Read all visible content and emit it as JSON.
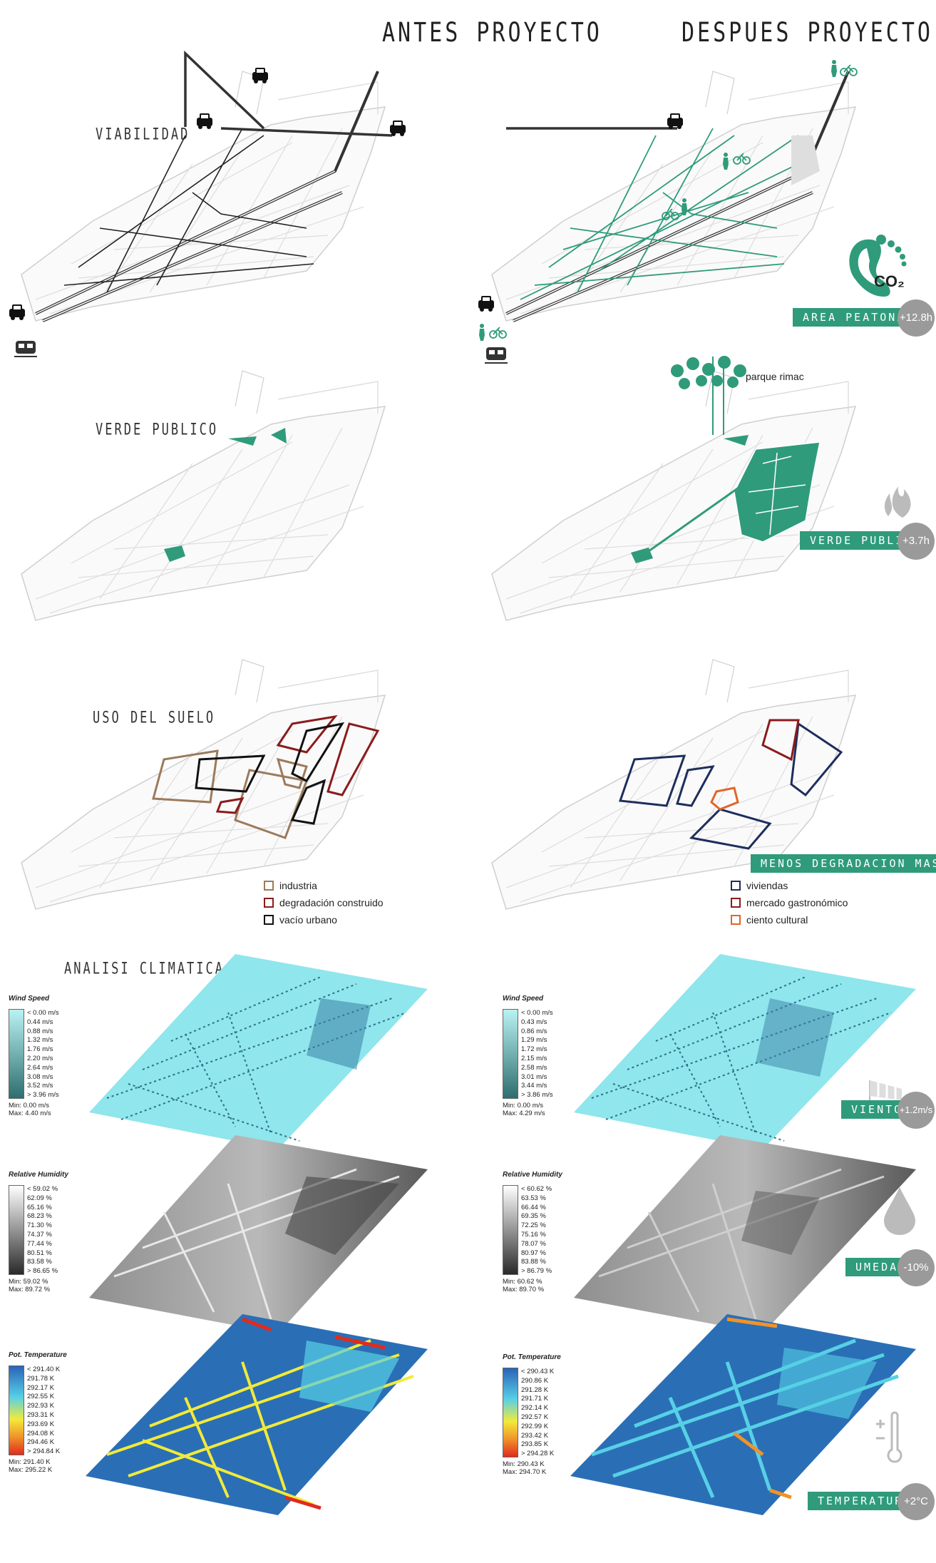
{
  "headers": {
    "before": "ANTES PROYECTO",
    "after": "DESPUES PROYECTO"
  },
  "sections": {
    "viabilidad": "VIABILIDAD",
    "verde": "VERDE PUBLICO",
    "uso": "USO DEL SUELO",
    "clima": "ANALISI CLIMATICA"
  },
  "badges": {
    "area_peatonal": {
      "label": "AREA PEATONAL",
      "value": "+12.8h"
    },
    "verde_publico": {
      "label": "VERDE PUBLICO",
      "value": "+3.7h"
    },
    "servicios": {
      "label": "MENOS DEGRADACION MAS SERVICIOS"
    },
    "viento": {
      "label": "VIENTO",
      "value": "+1.2m/s"
    },
    "umedad": {
      "label": "UMEDAD",
      "value": "-10%"
    },
    "temperaturas": {
      "label": "TEMPERATURAS",
      "value": "+2°C"
    }
  },
  "co2_label": "CO₂",
  "park_label": "parque rimac",
  "legend_before": [
    {
      "label": "industria",
      "color": "#9c7a5b"
    },
    {
      "label": "degradación construido",
      "color": "#8a1c1c"
    },
    {
      "label": "vacío urbano",
      "color": "#111111"
    }
  ],
  "legend_after": [
    {
      "label": "viviendas",
      "color": "#1d2e5c"
    },
    {
      "label": "mercado gastronómico",
      "color": "#8a1c1c"
    },
    {
      "label": "ciento cultural",
      "color": "#e0662a"
    }
  ],
  "scales": {
    "wind_before": {
      "title": "Wind Speed",
      "ticks": [
        "< 0.00 m/s",
        "0.44 m/s",
        "0.88 m/s",
        "1.32 m/s",
        "1.76 m/s",
        "2.20 m/s",
        "2.64 m/s",
        "3.08 m/s",
        "3.52 m/s",
        "> 3.96 m/s"
      ],
      "min": "Min: 0.00 m/s",
      "max": "Max: 4.40 m/s"
    },
    "wind_after": {
      "title": "Wind Speed",
      "ticks": [
        "< 0.00 m/s",
        "0.43 m/s",
        "0.86 m/s",
        "1.29 m/s",
        "1.72 m/s",
        "2.15 m/s",
        "2.58 m/s",
        "3.01 m/s",
        "3.44 m/s",
        "> 3.86 m/s"
      ],
      "min": "Min: 0.00 m/s",
      "max": "Max: 4.29 m/s"
    },
    "hum_before": {
      "title": "Relative Humidity",
      "ticks": [
        "< 59.02 %",
        "62.09 %",
        "65.16 %",
        "68.23 %",
        "71.30 %",
        "74.37 %",
        "77.44 %",
        "80.51 %",
        "83.58 %",
        "> 86.65 %"
      ],
      "min": "Min: 59.02 %",
      "max": "Max: 89.72 %"
    },
    "hum_after": {
      "title": "Relative Humidity",
      "ticks": [
        "< 60.62 %",
        "63.53 %",
        "66.44 %",
        "69.35 %",
        "72.25 %",
        "75.16 %",
        "78.07 %",
        "80.97 %",
        "83.88 %",
        "> 86.79 %"
      ],
      "min": "Min: 60.62 %",
      "max": "Max: 89.70 %"
    },
    "temp_before": {
      "title": "Pot. Temperature",
      "ticks": [
        "< 291.40 K",
        "291.78 K",
        "292.17 K",
        "292.55 K",
        "292.93 K",
        "293.31 K",
        "293.69 K",
        "294.08 K",
        "294.46 K",
        "> 294.84 K"
      ],
      "min": "Min: 291.40 K",
      "max": "Max: 295.22 K"
    },
    "temp_after": {
      "title": "Pot. Temperature",
      "ticks": [
        "< 290.43 K",
        "290.86 K",
        "291.28 K",
        "291.71 K",
        "292.14 K",
        "292.57 K",
        "292.99 K",
        "293.42 K",
        "293.85 K",
        "> 294.28 K"
      ],
      "min": "Min: 290.43 K",
      "max": "Max: 294.70 K"
    }
  },
  "colors": {
    "accent": "#2f9b7a",
    "gray": "#9a9a9a"
  }
}
